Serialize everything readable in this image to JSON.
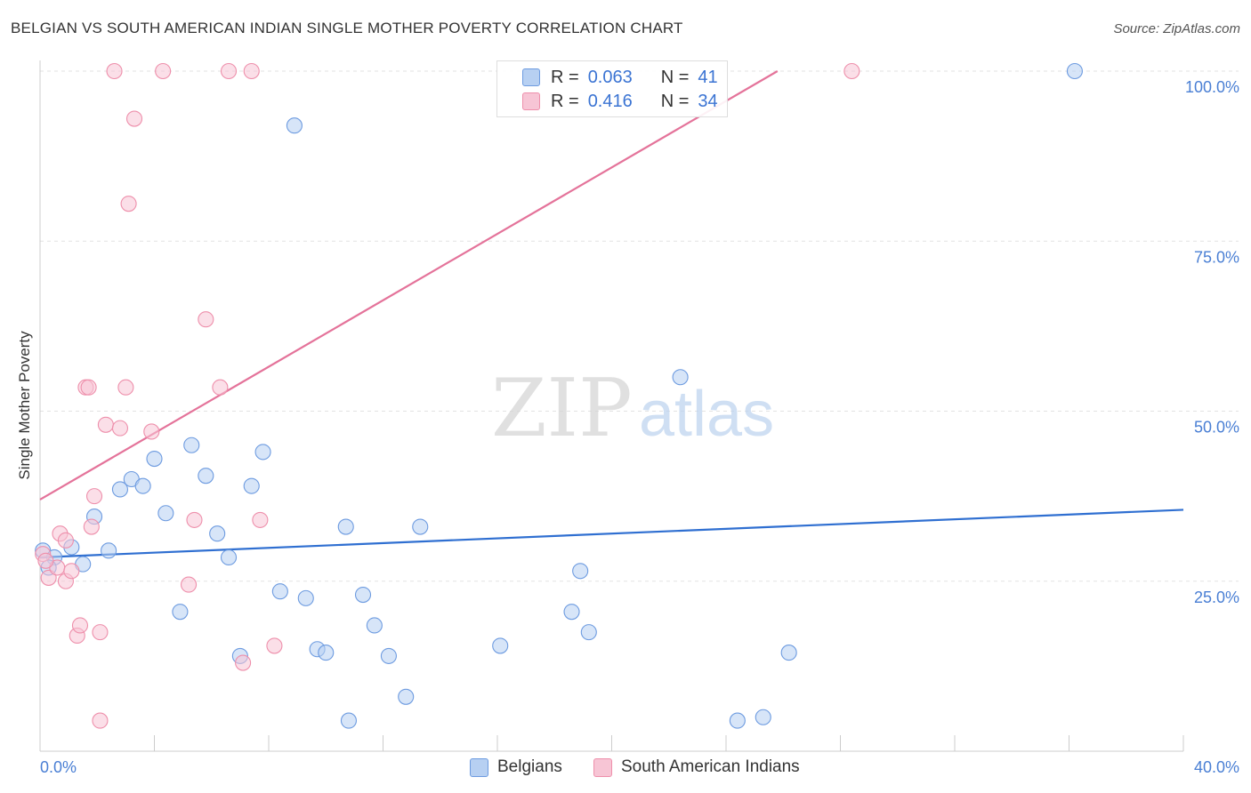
{
  "title": "BELGIAN VS SOUTH AMERICAN INDIAN SINGLE MOTHER POVERTY CORRELATION CHART",
  "source": "Source: ZipAtlas.com",
  "watermark": {
    "zip": "ZIP",
    "atlas": "atlas"
  },
  "colors": {
    "blue_fill": "#b7d0f2",
    "blue_stroke": "#6d9be0",
    "blue_line": "#2f6fd1",
    "pink_fill": "#f7c5d5",
    "pink_stroke": "#ee8fab",
    "pink_line": "#e4739a",
    "tick_label": "#4a7fd4",
    "grid": "#e2e2e2"
  },
  "legend": {
    "r_label": "R =",
    "n_label": "N =",
    "rows": [
      {
        "r": "0.063",
        "n": "41",
        "color": "blue"
      },
      {
        "r": "0.416",
        "n": "34",
        "color": "pink"
      }
    ]
  },
  "bottom_legend": {
    "belgians": "Belgians",
    "sai": "South American Indians"
  },
  "chart_data": {
    "type": "scatter",
    "title": "BELGIAN VS SOUTH AMERICAN INDIAN SINGLE MOTHER POVERTY CORRELATION CHART",
    "xlabel": "",
    "ylabel": "Single Mother Poverty",
    "xlim": [
      0,
      40
    ],
    "ylim": [
      0,
      100
    ],
    "x_ticks_labeled": [
      "0.0%",
      "40.0%"
    ],
    "y_ticks": [
      "25.0%",
      "50.0%",
      "75.0%",
      "100.0%"
    ],
    "grid": true,
    "legend_position": "top-center",
    "series": [
      {
        "name": "Belgians",
        "color": "blue",
        "r": 0.063,
        "n": 41,
        "trend": [
          [
            0,
            28.5
          ],
          [
            40,
            35.5
          ]
        ],
        "points": [
          [
            0.1,
            29.5
          ],
          [
            0.5,
            28.5
          ],
          [
            1.1,
            30.0
          ],
          [
            1.5,
            27.5
          ],
          [
            1.9,
            34.5
          ],
          [
            2.4,
            29.5
          ],
          [
            2.8,
            38.5
          ],
          [
            3.2,
            40.0
          ],
          [
            3.6,
            39.0
          ],
          [
            4.0,
            43.0
          ],
          [
            4.4,
            35.0
          ],
          [
            4.9,
            20.5
          ],
          [
            5.3,
            45.0
          ],
          [
            5.8,
            40.5
          ],
          [
            6.2,
            32.0
          ],
          [
            6.6,
            28.5
          ],
          [
            7.0,
            14.0
          ],
          [
            7.4,
            39.0
          ],
          [
            7.8,
            44.0
          ],
          [
            8.4,
            23.5
          ],
          [
            8.9,
            92.0
          ],
          [
            9.3,
            22.5
          ],
          [
            9.7,
            15.0
          ],
          [
            10.0,
            14.5
          ],
          [
            10.7,
            33.0
          ],
          [
            10.8,
            4.5
          ],
          [
            11.3,
            23.0
          ],
          [
            11.7,
            18.5
          ],
          [
            12.2,
            14.0
          ],
          [
            12.8,
            8.0
          ],
          [
            13.3,
            33.0
          ],
          [
            16.1,
            15.5
          ],
          [
            18.6,
            20.5
          ],
          [
            18.9,
            26.5
          ],
          [
            19.2,
            17.5
          ],
          [
            22.4,
            55.0
          ],
          [
            24.4,
            4.5
          ],
          [
            25.3,
            5.0
          ],
          [
            26.2,
            14.5
          ],
          [
            36.2,
            100.0
          ],
          [
            0.3,
            27.0
          ]
        ]
      },
      {
        "name": "South American Indians",
        "color": "pink",
        "r": 0.416,
        "n": 34,
        "trend": [
          [
            0,
            37.0
          ],
          [
            25.8,
            100.0
          ]
        ],
        "points": [
          [
            0.1,
            29.0
          ],
          [
            0.3,
            25.5
          ],
          [
            0.6,
            27.0
          ],
          [
            0.7,
            32.0
          ],
          [
            0.9,
            25.0
          ],
          [
            0.9,
            31.0
          ],
          [
            1.1,
            26.5
          ],
          [
            1.3,
            17.0
          ],
          [
            1.4,
            18.5
          ],
          [
            1.6,
            53.5
          ],
          [
            1.7,
            53.5
          ],
          [
            1.8,
            33.0
          ],
          [
            1.9,
            37.5
          ],
          [
            2.1,
            17.5
          ],
          [
            2.1,
            4.5
          ],
          [
            2.3,
            48.0
          ],
          [
            2.6,
            100.0
          ],
          [
            2.8,
            47.5
          ],
          [
            3.0,
            53.5
          ],
          [
            3.1,
            80.5
          ],
          [
            3.3,
            93.0
          ],
          [
            3.9,
            47.0
          ],
          [
            4.3,
            100.0
          ],
          [
            5.2,
            24.5
          ],
          [
            5.4,
            34.0
          ],
          [
            5.8,
            63.5
          ],
          [
            6.3,
            53.5
          ],
          [
            6.6,
            100.0
          ],
          [
            7.1,
            13.0
          ],
          [
            7.4,
            100.0
          ],
          [
            7.7,
            34.0
          ],
          [
            8.2,
            15.5
          ],
          [
            28.4,
            100.0
          ],
          [
            0.2,
            28.0
          ]
        ]
      }
    ]
  }
}
